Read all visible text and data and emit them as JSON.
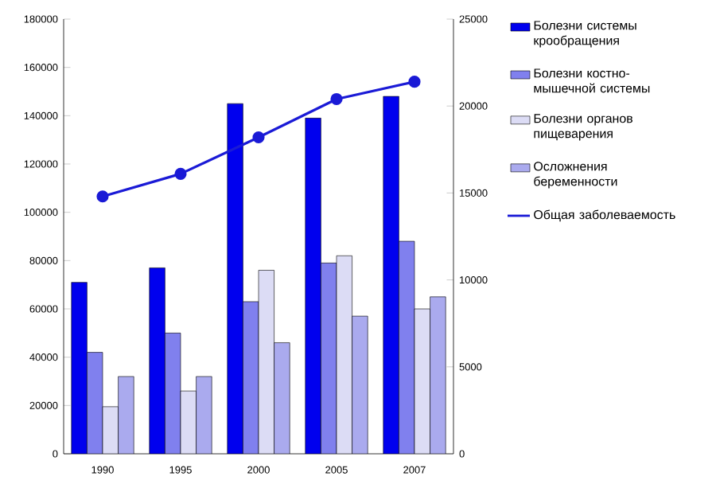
{
  "chart_data": {
    "type": "bar",
    "categories": [
      "1990",
      "1995",
      "2000",
      "2005",
      "2007"
    ],
    "series": [
      {
        "name": "Болезни системы крообращения",
        "color": "#0000ee",
        "values": [
          71000,
          77000,
          145000,
          139000,
          148000
        ]
      },
      {
        "name": "Болезни костно-мышечной системы",
        "color": "#8080ee",
        "values": [
          42000,
          50000,
          63000,
          79000,
          88000
        ]
      },
      {
        "name": "Болезни органов пищеварения",
        "color": "#dcdcf5",
        "values": [
          19500,
          26000,
          76000,
          82000,
          60000
        ]
      },
      {
        "name": "Осложнения беременности",
        "color": "#aaaaee",
        "values": [
          32000,
          32000,
          46000,
          57000,
          65000
        ]
      },
      {
        "name": "Общая заболеваемость",
        "type": "line",
        "axis": "y2",
        "color": "#1a1ad6",
        "marker": "circle",
        "values": [
          14800,
          16100,
          18200,
          20400,
          21400
        ]
      }
    ],
    "ylim": [
      0,
      180000
    ],
    "yticks": [
      0,
      20000,
      40000,
      60000,
      80000,
      100000,
      120000,
      140000,
      160000,
      180000
    ],
    "y2lim": [
      0,
      25000
    ],
    "y2ticks": [
      0,
      5000,
      10000,
      15000,
      20000,
      25000
    ],
    "legend": "right"
  }
}
